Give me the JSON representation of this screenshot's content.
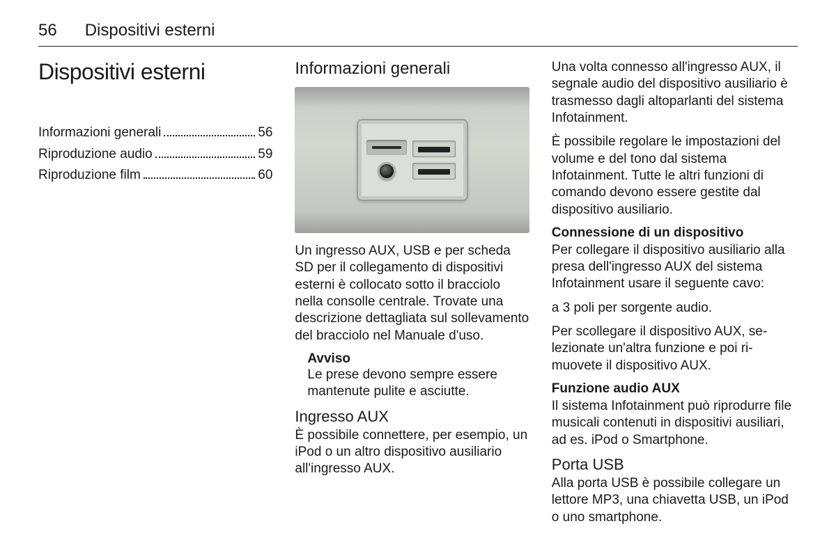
{
  "header": {
    "page_number": "56",
    "running_title": "Dispositivi esterni"
  },
  "col1": {
    "chapter_title": "Dispositivi esterni",
    "toc": [
      {
        "label": "Informazioni generali",
        "page": "56"
      },
      {
        "label": "Riproduzione audio",
        "page": "59"
      },
      {
        "label": "Riproduzione film",
        "page": "60"
      }
    ]
  },
  "col2": {
    "heading": "Informazioni generali",
    "p1": "Un ingresso AUX, USB e per scheda SD per il collegamento di dispositivi esterni è collocato sotto il bracciolo nella consolle centrale. Trovate una descrizione dettagliata sul solleva­mento del bracciolo nel Manuale d'uso.",
    "notice_title": "Avviso",
    "notice_body": "Le prese devono sempre essere mantenute pulite e asciutte.",
    "h_aux": "Ingresso AUX",
    "p_aux": "È possibile connettere, per esempio, un iPod o un altro dispositivo ausilia­rio all'ingresso AUX."
  },
  "col3": {
    "p1": "Una volta connesso all'ingresso AUX, il segnale audio del dispositivo ausi­liario è trasmesso dagli altoparlanti del sistema Infotainment.",
    "p2": "È possibile regolare le impostazioni del volume e del tono dal sistema Infotainment. Tutte le altri funzioni di comando devono essere gestite dal dispositivo ausiliario.",
    "h_conn": "Connessione di un dispositivo",
    "p_conn": "Per collegare il dispositivo ausiliario alla presa dell'ingresso AUX del si­stema Infotainment usare il seguente cavo:",
    "p_cable": "a 3 poli per sorgente audio.",
    "p_disc": "Per scollegare il dispositivo AUX, se­lezionate un'altra funzione e poi ri­muovete il dispositivo AUX.",
    "h_auxfn": "Funzione audio AUX",
    "p_auxfn": "Il sistema Infotainment può riprodurre file musicali contenuti in dispositivi ausiliari, ad es. iPod o Smartphone.",
    "h_usb": "Porta USB",
    "p_usb": "Alla porta USB è possibile collegare un lettore MP3, una chiavetta USB, un iPod o uno smartphone."
  }
}
